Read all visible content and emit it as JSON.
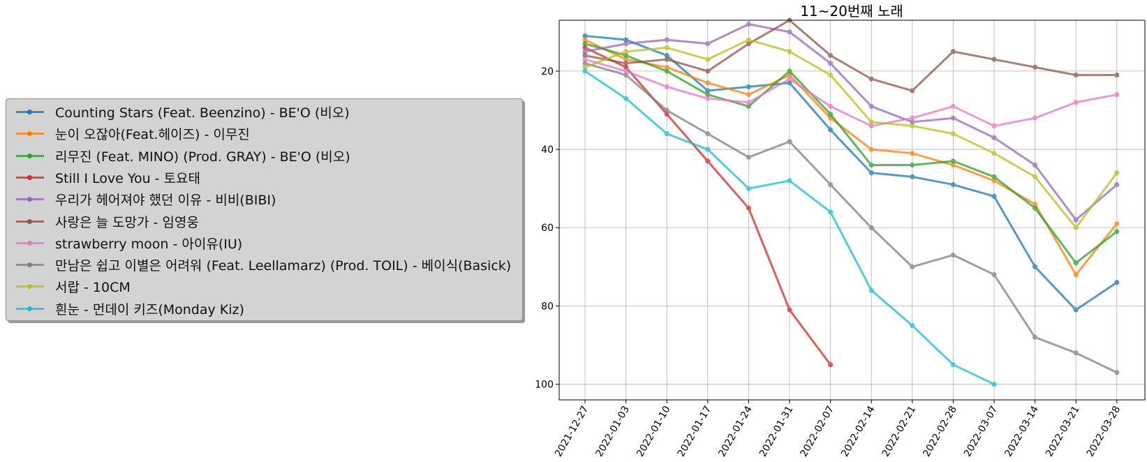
{
  "chart_data": {
    "type": "line",
    "title": "11~20번째 노래",
    "xlabel": "",
    "ylabel": "",
    "y_inverted": true,
    "ylim": [
      104,
      7
    ],
    "yticks": [
      20,
      40,
      60,
      80,
      100
    ],
    "grid": true,
    "legend_position": "left",
    "x": [
      "2021-12-27",
      "2022-01-03",
      "2022-01-10",
      "2022-01-17",
      "2022-01-24",
      "2022-01-31",
      "2022-02-07",
      "2022-02-14",
      "2022-02-21",
      "2022-02-28",
      "2022-03-07",
      "2022-03-14",
      "2022-03-21",
      "2022-03-28"
    ],
    "series": [
      {
        "name": "Counting Stars (Feat. Beenzino) - BE'O (비오)",
        "color": "#1f77b4",
        "values": [
          11,
          12,
          16,
          25,
          24,
          23,
          35,
          46,
          47,
          49,
          52,
          70,
          81,
          74
        ]
      },
      {
        "name": "눈이 오잖아(Feat.헤이즈) - 이무진",
        "color": "#ff7f0e",
        "values": [
          12,
          17,
          19,
          23,
          26,
          21,
          32,
          40,
          41,
          44,
          48,
          54,
          72,
          59
        ]
      },
      {
        "name": "리무진 (Feat. MINO) (Prod. GRAY) - BE'O (비오)",
        "color": "#2ca02c",
        "values": [
          13,
          16,
          20,
          26,
          29,
          20,
          31,
          44,
          44,
          43,
          47,
          55,
          69,
          61
        ]
      },
      {
        "name": "Still I Love You - 토요태",
        "color": "#d62728",
        "values": [
          14,
          19,
          31,
          43,
          55,
          81,
          95,
          null,
          null,
          null,
          null,
          null,
          null,
          null
        ]
      },
      {
        "name": "우리가 헤어져야 했던 이유 - 비비(BIBI)",
        "color": "#9467bd",
        "values": [
          15,
          13,
          12,
          13,
          8,
          10,
          18,
          29,
          33,
          32,
          37,
          44,
          58,
          49
        ]
      },
      {
        "name": "사랑은 늘 도망가 - 임영웅",
        "color": "#8c564b",
        "values": [
          16,
          18,
          17,
          20,
          13,
          7,
          16,
          22,
          25,
          15,
          17,
          19,
          21,
          21
        ]
      },
      {
        "name": "strawberry moon - 아이유(IU)",
        "color": "#e377c2",
        "values": [
          17,
          20,
          24,
          27,
          28,
          22,
          29,
          34,
          32,
          29,
          34,
          32,
          28,
          26
        ]
      },
      {
        "name": "만남은 쉽고 이별은 어려워 (Feat. Leellamarz) (Prod. TOIL) - 베이식(Basick)",
        "color": "#7f7f7f",
        "values": [
          18,
          21,
          30,
          36,
          42,
          38,
          49,
          60,
          70,
          67,
          72,
          88,
          92,
          97
        ]
      },
      {
        "name": "서랍 - 10CM",
        "color": "#bcbd22",
        "values": [
          19,
          15,
          14,
          17,
          12,
          15,
          21,
          33,
          34,
          36,
          41,
          47,
          60,
          46
        ]
      },
      {
        "name": "흰눈 - 먼데이 키즈(Monday Kiz)",
        "color": "#17becf",
        "values": [
          20,
          27,
          36,
          40,
          50,
          48,
          56,
          76,
          85,
          95,
          100,
          null,
          null,
          null
        ]
      }
    ]
  }
}
